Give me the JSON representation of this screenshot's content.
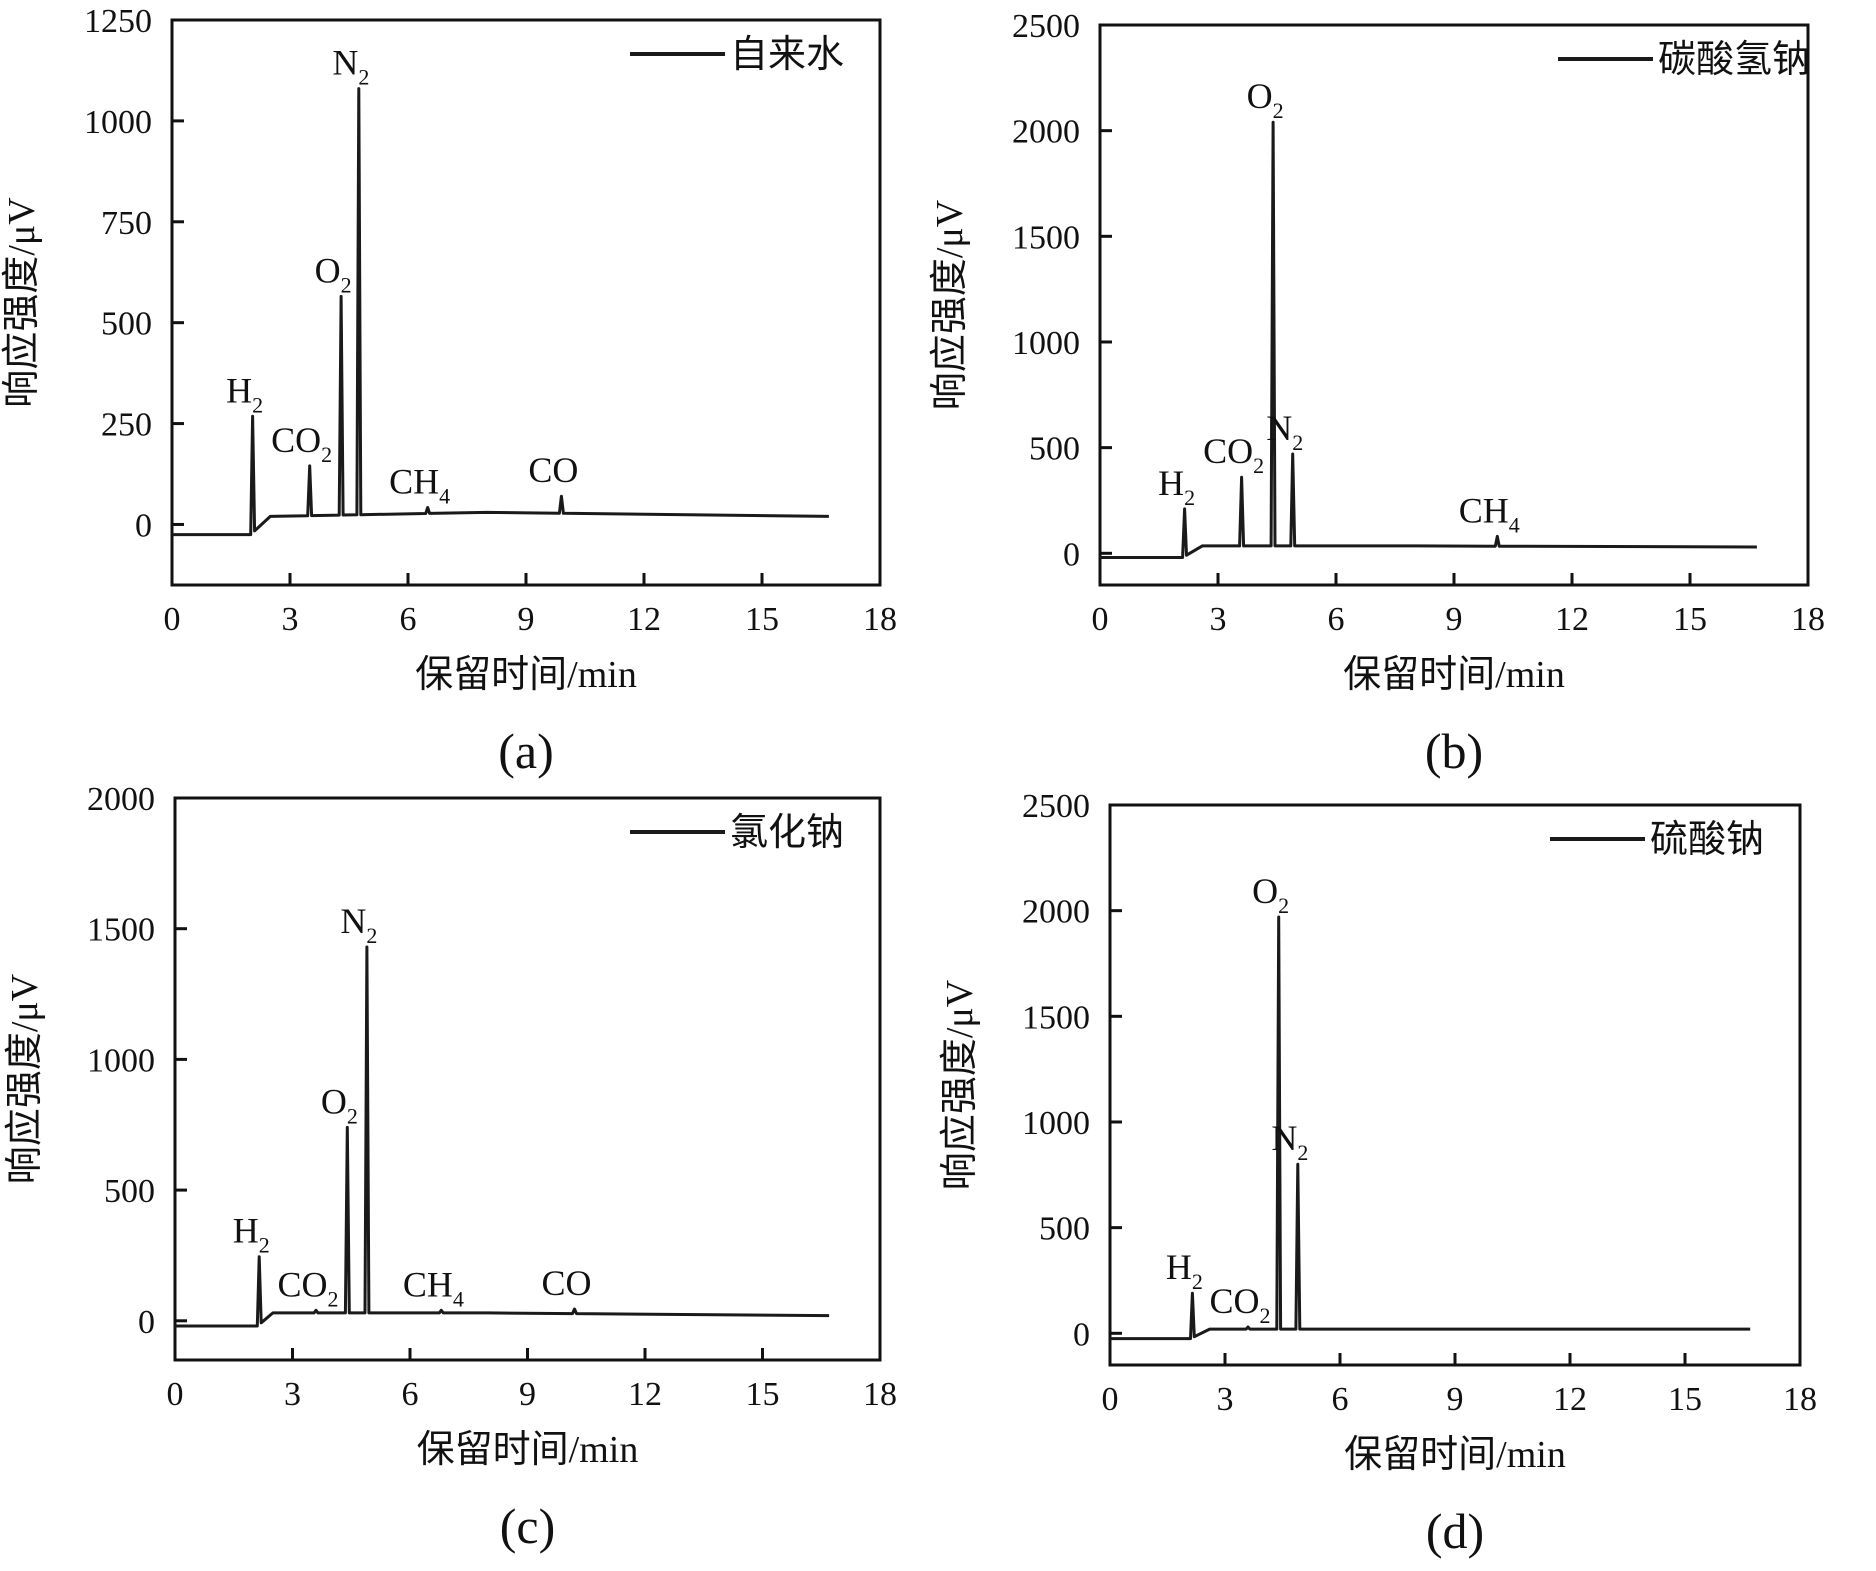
{
  "chart_data": [
    {
      "type": "line",
      "panel_label": "(a)",
      "xlabel": "保留时间/min",
      "ylabel": "响应强度/μV",
      "xlim": [
        0,
        18
      ],
      "ylim": [
        -150,
        1250
      ],
      "xticks": [
        "0",
        "3",
        "6",
        "9",
        "12",
        "15",
        "18"
      ],
      "yticks": [
        "0",
        "250",
        "500",
        "750",
        "1000",
        "1250"
      ],
      "series": [
        {
          "name": "自来水"
        }
      ],
      "baseline": [
        [
          0,
          -25
        ],
        [
          2.0,
          -25
        ],
        [
          2.5,
          20
        ],
        [
          8,
          30
        ],
        [
          16.7,
          20
        ]
      ],
      "peaks": [
        {
          "label": "H",
          "sub": "2",
          "x": 2.05,
          "y": 268
        },
        {
          "label": "CO",
          "sub": "2",
          "x": 3.5,
          "y": 145
        },
        {
          "label": "O",
          "sub": "2",
          "x": 4.3,
          "y": 565
        },
        {
          "label": "N",
          "sub": "2",
          "x": 4.75,
          "y": 1080
        },
        {
          "label": "CH",
          "sub": "4",
          "x": 6.5,
          "y": 42
        },
        {
          "label": "CO",
          "sub": "",
          "x": 9.9,
          "y": 70
        }
      ],
      "legend_position": "top-right",
      "grid": false
    },
    {
      "type": "line",
      "panel_label": "(b)",
      "xlabel": "保留时间/min",
      "ylabel": "响应强度/μV",
      "xlim": [
        0,
        18
      ],
      "ylim": [
        -150,
        2500
      ],
      "xticks": [
        "0",
        "3",
        "6",
        "9",
        "12",
        "15",
        "18"
      ],
      "yticks": [
        "0",
        "500",
        "1000",
        "1500",
        "2000",
        "2500"
      ],
      "series": [
        {
          "name": "碳酸氢钠"
        }
      ],
      "baseline": [
        [
          0,
          -20
        ],
        [
          2.1,
          -20
        ],
        [
          2.6,
          35
        ],
        [
          8,
          35
        ],
        [
          16.7,
          30
        ]
      ],
      "peaks": [
        {
          "label": "H",
          "sub": "2",
          "x": 2.15,
          "y": 210
        },
        {
          "label": "CO",
          "sub": "2",
          "x": 3.6,
          "y": 360
        },
        {
          "label": "O",
          "sub": "2",
          "x": 4.4,
          "y": 2040
        },
        {
          "label": "N",
          "sub": "2",
          "x": 4.9,
          "y": 470
        },
        {
          "label": "CH",
          "sub": "4",
          "x": 10.1,
          "y": 80
        }
      ],
      "legend_position": "top-right",
      "grid": false
    },
    {
      "type": "line",
      "panel_label": "(c)",
      "xlabel": "保留时间/min",
      "ylabel": "响应强度/μV",
      "xlim": [
        0,
        18
      ],
      "ylim": [
        -150,
        2000
      ],
      "xticks": [
        "0",
        "3",
        "6",
        "9",
        "12",
        "15",
        "18"
      ],
      "yticks": [
        "0",
        "500",
        "1000",
        "1500",
        "2000"
      ],
      "series": [
        {
          "name": "氯化钠"
        }
      ],
      "baseline": [
        [
          0,
          -20
        ],
        [
          2.1,
          -20
        ],
        [
          2.5,
          30
        ],
        [
          8,
          30
        ],
        [
          16.7,
          20
        ]
      ],
      "peaks": [
        {
          "label": "H",
          "sub": "2",
          "x": 2.15,
          "y": 245
        },
        {
          "label": "CO",
          "sub": "2",
          "x": 3.6,
          "y": 40
        },
        {
          "label": "O",
          "sub": "2",
          "x": 4.4,
          "y": 740
        },
        {
          "label": "N",
          "sub": "2",
          "x": 4.9,
          "y": 1430
        },
        {
          "label": "CH",
          "sub": "4",
          "x": 6.8,
          "y": 40
        },
        {
          "label": "CO",
          "sub": "",
          "x": 10.2,
          "y": 45
        }
      ],
      "legend_position": "top-right",
      "grid": false
    },
    {
      "type": "line",
      "panel_label": "(d)",
      "xlabel": "保留时间/min",
      "ylabel": "响应强度/μV",
      "xlim": [
        0,
        18
      ],
      "ylim": [
        -150,
        2500
      ],
      "xticks": [
        "0",
        "3",
        "6",
        "9",
        "12",
        "15",
        "18"
      ],
      "yticks": [
        "0",
        "500",
        "1000",
        "1500",
        "2000",
        "2500"
      ],
      "series": [
        {
          "name": "硫酸钠"
        }
      ],
      "baseline": [
        [
          0,
          -25
        ],
        [
          2.1,
          -25
        ],
        [
          2.6,
          20
        ],
        [
          8,
          20
        ],
        [
          16.7,
          20
        ]
      ],
      "peaks": [
        {
          "label": "H",
          "sub": "2",
          "x": 2.15,
          "y": 190
        },
        {
          "label": "CO",
          "sub": "2",
          "x": 3.6,
          "y": 30
        },
        {
          "label": "O",
          "sub": "2",
          "x": 4.4,
          "y": 1970
        },
        {
          "label": "N",
          "sub": "2",
          "x": 4.9,
          "y": 800
        }
      ],
      "legend_position": "top-right",
      "grid": false
    }
  ]
}
